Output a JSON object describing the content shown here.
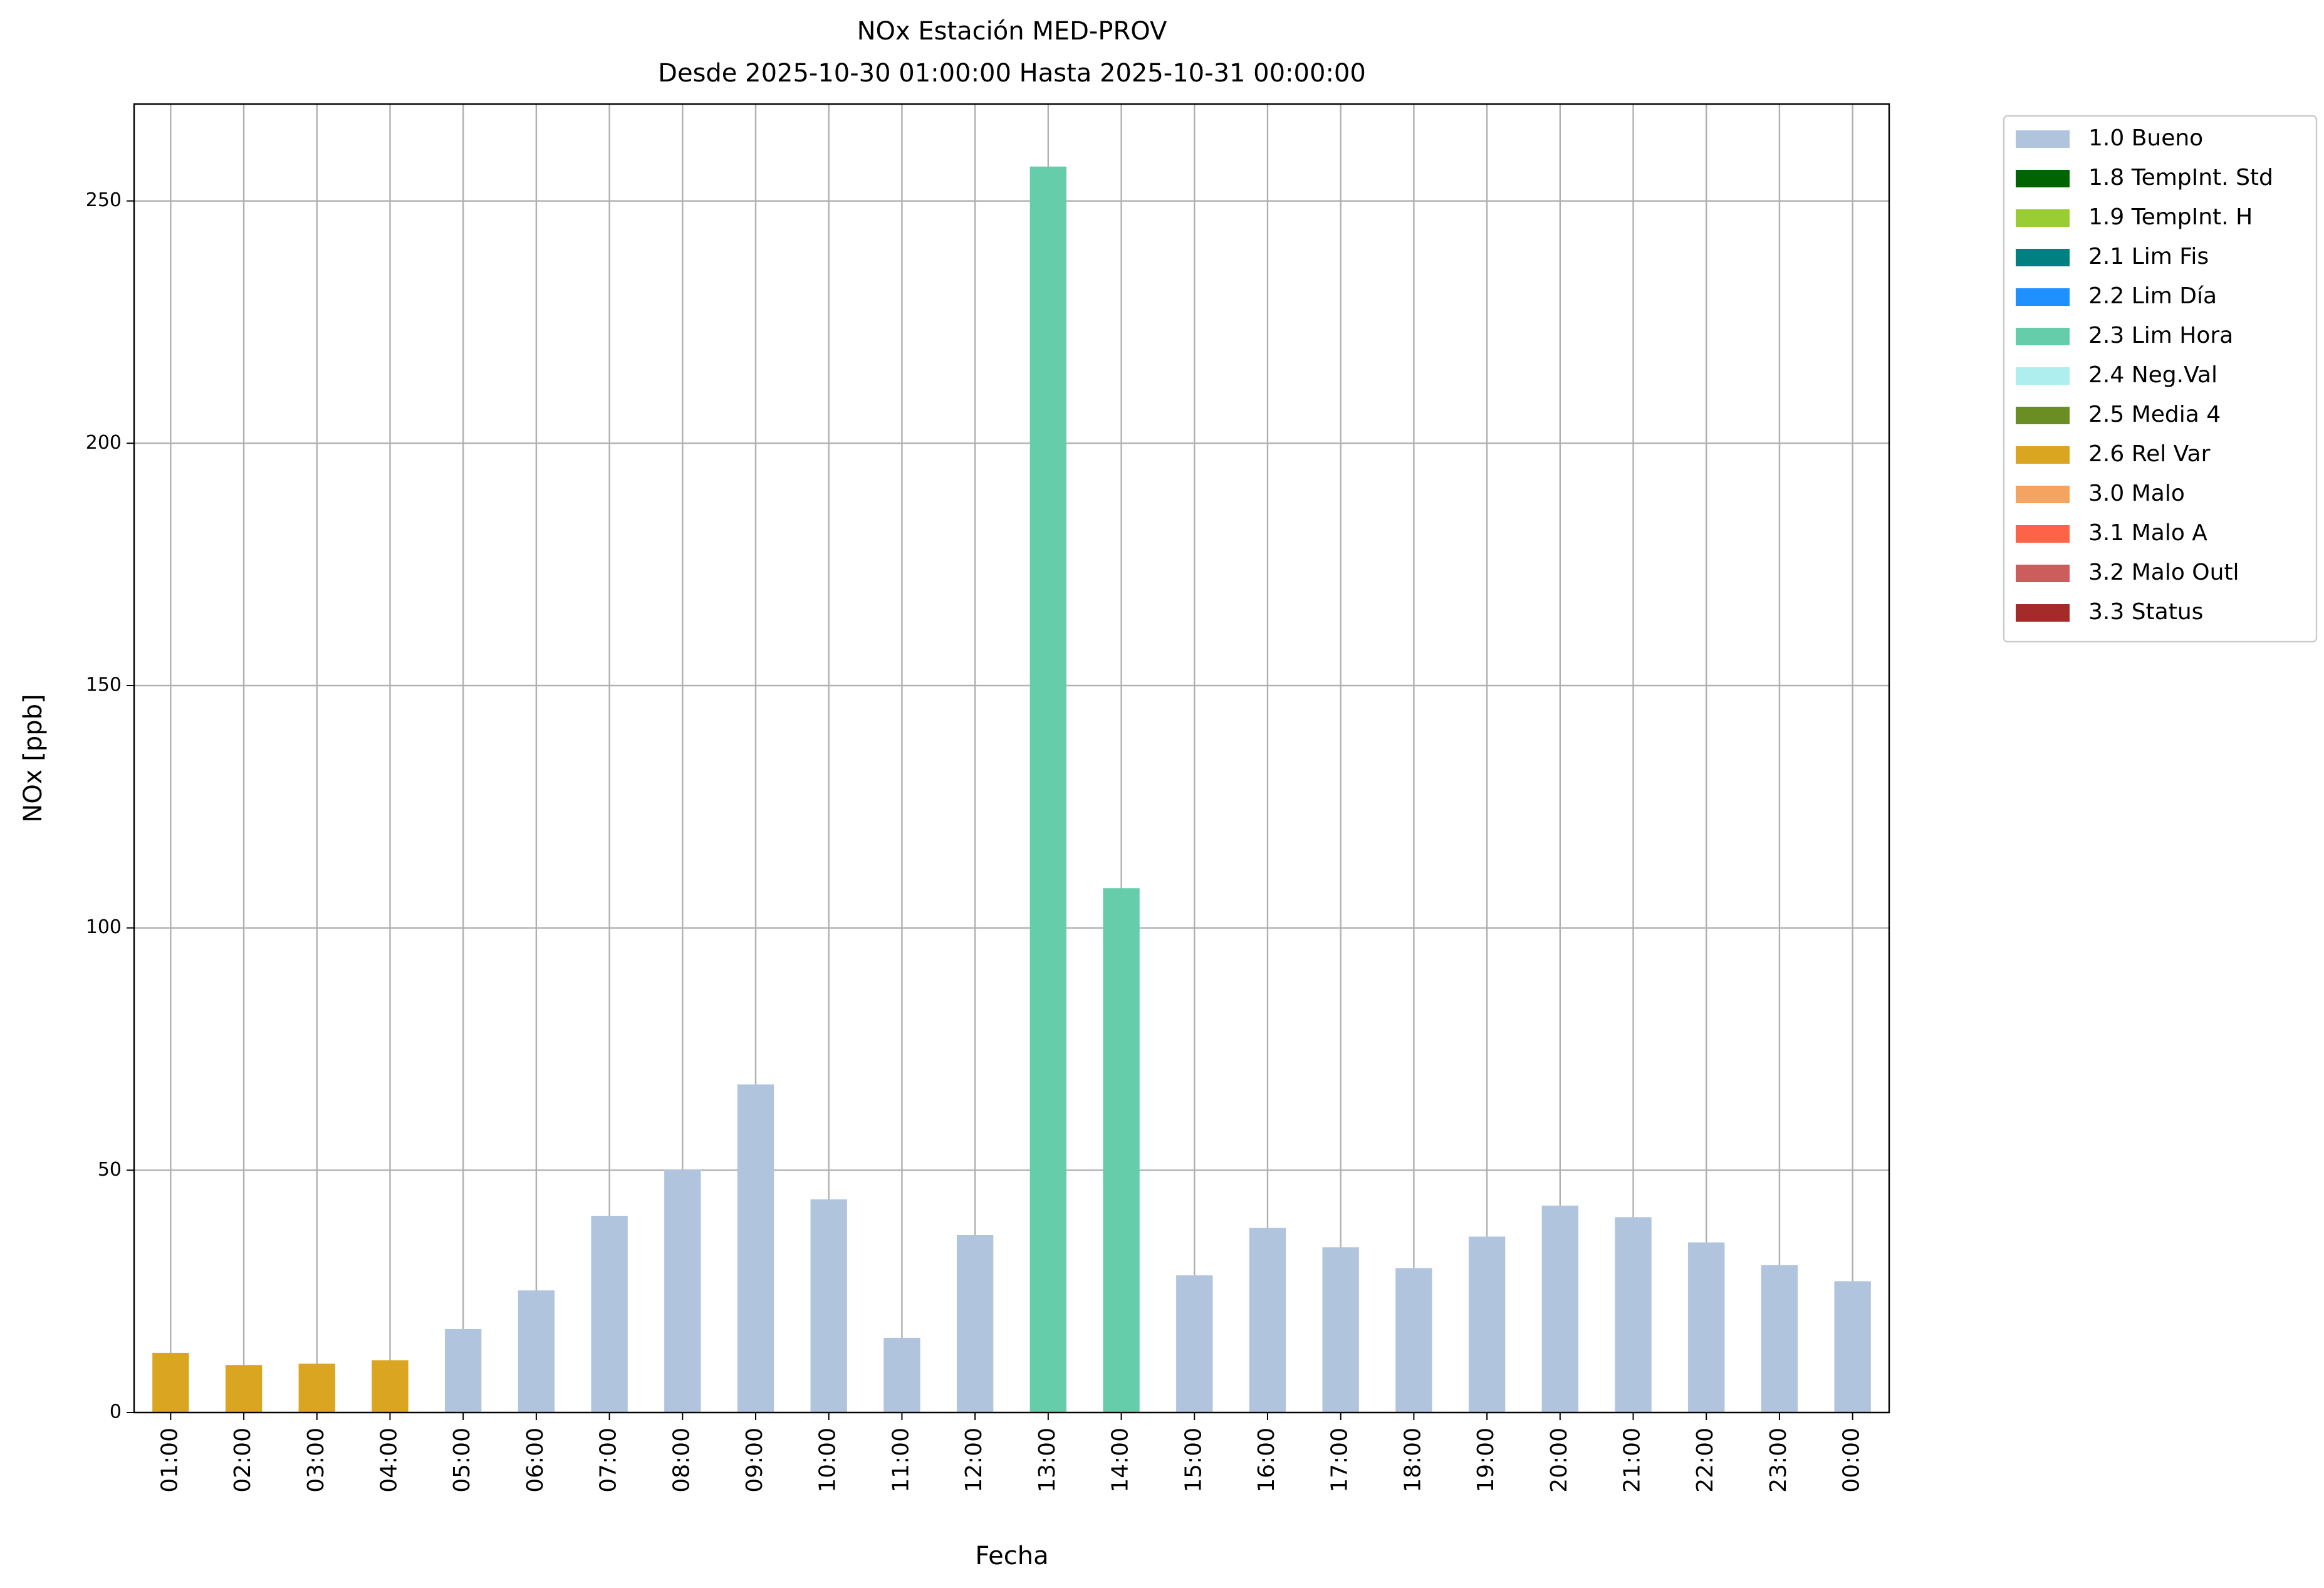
{
  "chart_data": {
    "type": "bar",
    "stacked": true,
    "title": "NOx Estación MED-PROV",
    "subtitle": "Desde 2025-10-30 01:00:00 Hasta 2025-10-31 00:00:00",
    "x_label": "Fecha",
    "y_label": "NOx [ppb]",
    "categories": [
      "01:00",
      "02:00",
      "03:00",
      "04:00",
      "05:00",
      "06:00",
      "07:00",
      "08:00",
      "09:00",
      "10:00",
      "11:00",
      "12:00",
      "13:00",
      "14:00",
      "15:00",
      "16:00",
      "17:00",
      "18:00",
      "19:00",
      "20:00",
      "21:00",
      "22:00",
      "23:00",
      "00:00"
    ],
    "ylim": [
      0,
      270
    ],
    "yticks": [
      0,
      50,
      100,
      150,
      200,
      250
    ],
    "grid": true,
    "legend": "outside-upper-right",
    "series": [
      {
        "name": "1.0 Bueno",
        "color": "#b0c4de",
        "values": [
          null,
          null,
          null,
          null,
          17.2,
          25.2,
          40.6,
          50.1,
          67.7,
          44.0,
          15.4,
          36.6,
          null,
          null,
          28.3,
          38.1,
          34.1,
          29.8,
          36.3,
          42.7,
          40.3,
          35.1,
          30.4,
          27.1
        ]
      },
      {
        "name": "1.8 TempInt. Std",
        "color": "#006400",
        "values": [
          null,
          null,
          null,
          null,
          null,
          null,
          null,
          null,
          null,
          null,
          null,
          null,
          null,
          null,
          null,
          null,
          null,
          null,
          null,
          null,
          null,
          null,
          null,
          null
        ]
      },
      {
        "name": "1.9 TempInt. H",
        "color": "#9acd32",
        "values": [
          null,
          null,
          null,
          null,
          null,
          null,
          null,
          null,
          null,
          null,
          null,
          null,
          null,
          null,
          null,
          null,
          null,
          null,
          null,
          null,
          null,
          null,
          null,
          null
        ]
      },
      {
        "name": "2.1 Lim Fis",
        "color": "#008080",
        "values": [
          null,
          null,
          null,
          null,
          null,
          null,
          null,
          null,
          null,
          null,
          null,
          null,
          null,
          null,
          null,
          null,
          null,
          null,
          null,
          null,
          null,
          null,
          null,
          null
        ]
      },
      {
        "name": "2.2 Lim Día",
        "color": "#1e90ff",
        "values": [
          null,
          null,
          null,
          null,
          null,
          null,
          null,
          null,
          null,
          null,
          null,
          null,
          null,
          null,
          null,
          null,
          null,
          null,
          null,
          null,
          null,
          null,
          null,
          null
        ]
      },
      {
        "name": "2.3 Lim Hora",
        "color": "#66cdaa",
        "values": [
          null,
          null,
          null,
          null,
          null,
          null,
          null,
          null,
          null,
          null,
          null,
          null,
          257.1,
          108.2,
          null,
          null,
          null,
          null,
          null,
          null,
          null,
          null,
          null,
          null
        ]
      },
      {
        "name": "2.4 Neg.Val",
        "color": "#afeeee",
        "values": [
          null,
          null,
          null,
          null,
          null,
          null,
          null,
          null,
          null,
          null,
          null,
          null,
          null,
          null,
          null,
          null,
          null,
          null,
          null,
          null,
          null,
          null,
          null,
          null
        ]
      },
      {
        "name": "2.5 Media 4",
        "color": "#6b8e23",
        "values": [
          null,
          null,
          null,
          null,
          null,
          null,
          null,
          null,
          null,
          null,
          null,
          null,
          null,
          null,
          null,
          null,
          null,
          null,
          null,
          null,
          null,
          null,
          null,
          null
        ]
      },
      {
        "name": "2.6 Rel Var",
        "color": "#daa520",
        "values": [
          12.3,
          9.8,
          10.1,
          10.8,
          null,
          null,
          null,
          null,
          null,
          null,
          null,
          null,
          null,
          null,
          null,
          null,
          null,
          null,
          null,
          null,
          null,
          null,
          null,
          null
        ]
      },
      {
        "name": "3.0 Malo",
        "color": "#f4a460",
        "values": [
          null,
          null,
          null,
          null,
          null,
          null,
          null,
          null,
          null,
          null,
          null,
          null,
          null,
          null,
          null,
          null,
          null,
          null,
          null,
          null,
          null,
          null,
          null,
          null
        ]
      },
      {
        "name": "3.1 Malo A",
        "color": "#ff6347",
        "values": [
          null,
          null,
          null,
          null,
          null,
          null,
          null,
          null,
          null,
          null,
          null,
          null,
          null,
          null,
          null,
          null,
          null,
          null,
          null,
          null,
          null,
          null,
          null,
          null
        ]
      },
      {
        "name": "3.2 Malo Outl",
        "color": "#cd5c5c",
        "values": [
          null,
          null,
          null,
          null,
          null,
          null,
          null,
          null,
          null,
          null,
          null,
          null,
          null,
          null,
          null,
          null,
          null,
          null,
          null,
          null,
          null,
          null,
          null,
          null
        ]
      },
      {
        "name": "3.3 Status",
        "color": "#a52a2a",
        "values": [
          null,
          null,
          null,
          null,
          null,
          null,
          null,
          null,
          null,
          null,
          null,
          null,
          null,
          null,
          null,
          null,
          null,
          null,
          null,
          null,
          null,
          null,
          null,
          null
        ]
      }
    ]
  }
}
